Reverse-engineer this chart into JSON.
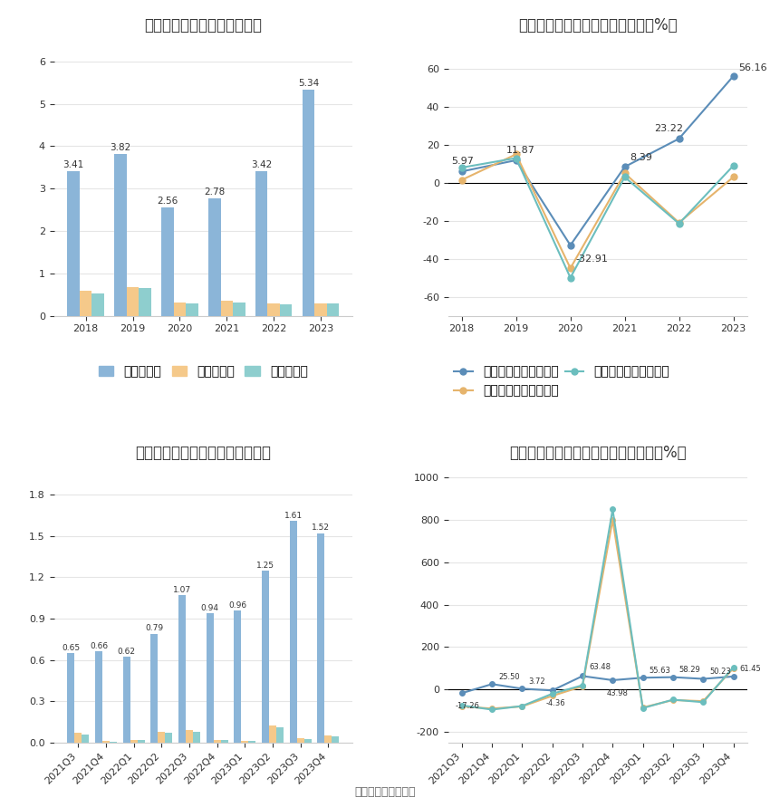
{
  "title1": "历年营收、净利情况（亿元）",
  "title2": "历年营收、净利同比增长率情况（%）",
  "title3": "营收、净利季度变动情况（亿元）",
  "title4": "营收、净利同比增长率季度变动情况（%）",
  "footer": "数据来源：恒生聚源",
  "annual_years": [
    "2018",
    "2019",
    "2020",
    "2021",
    "2022",
    "2023"
  ],
  "annual_revenue": [
    3.41,
    3.82,
    2.56,
    2.78,
    3.42,
    5.34
  ],
  "annual_net_profit": [
    0.58,
    0.68,
    0.32,
    0.35,
    0.29,
    0.3
  ],
  "annual_deducted_profit": [
    0.53,
    0.65,
    0.29,
    0.32,
    0.27,
    0.28
  ],
  "annual_revenue_growth": [
    5.97,
    11.87,
    -32.91,
    8.39,
    23.22,
    56.16
  ],
  "annual_net_profit_growth": [
    1.5,
    15.0,
    -45.0,
    5.0,
    -21.0,
    3.0
  ],
  "annual_deducted_profit_growth": [
    8.0,
    13.0,
    -50.0,
    3.0,
    -21.5,
    9.0
  ],
  "quarterly_labels": [
    "2021Q3",
    "2021Q4",
    "2022Q1",
    "2022Q2",
    "2022Q3",
    "2022Q4",
    "2023Q1",
    "2023Q2",
    "2023Q3",
    "2023Q4"
  ],
  "quarterly_revenue": [
    0.65,
    0.66,
    0.62,
    0.79,
    1.07,
    0.94,
    0.96,
    1.25,
    1.61,
    1.52
  ],
  "quarterly_net_profit": [
    0.07,
    0.01,
    0.02,
    0.08,
    0.09,
    0.02,
    0.01,
    0.12,
    0.03,
    0.05
  ],
  "quarterly_deducted_profit": [
    0.06,
    0.005,
    0.015,
    0.07,
    0.08,
    0.015,
    0.01,
    0.11,
    0.025,
    0.045
  ],
  "quarterly_revenue_growth": [
    -17.26,
    25.5,
    3.72,
    -4.36,
    63.48,
    43.98,
    55.63,
    58.29,
    50.23,
    61.45
  ],
  "quarterly_net_profit_growth": [
    -80.0,
    -90.0,
    -80.0,
    -30.0,
    15.0,
    800.0,
    -85.0,
    -50.0,
    -55.0,
    100.0
  ],
  "quarterly_deducted_profit_growth": [
    -75.0,
    -95.0,
    -78.0,
    -20.0,
    20.0,
    850.0,
    -88.0,
    -48.0,
    -60.0,
    105.0
  ],
  "bar_blue": "#8BB5D8",
  "bar_orange": "#F5C98A",
  "bar_teal": "#8ECECE",
  "line_blue": "#5B8DB8",
  "line_orange": "#E6B46C",
  "line_teal": "#6BBEBE",
  "bg_color": "#FFFFFF",
  "grid_color": "#E5E5E5",
  "text_color": "#333333",
  "title_fontsize": 12,
  "tick_fontsize": 8,
  "legend_fontsize": 9,
  "annotation_fontsize": 8
}
